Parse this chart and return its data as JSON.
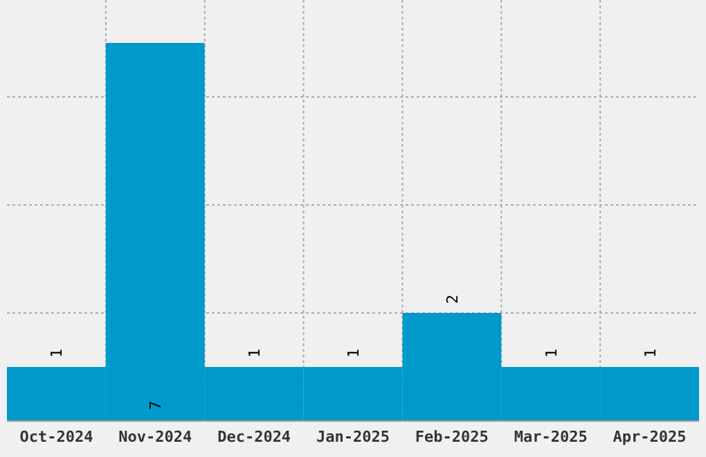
{
  "chart_data": {
    "type": "bar",
    "categories": [
      "Oct-2024",
      "Nov-2024",
      "Dec-2024",
      "Jan-2025",
      "Feb-2025",
      "Mar-2025",
      "Apr-2025"
    ],
    "values": [
      1,
      7,
      1,
      1,
      2,
      1,
      1
    ],
    "color": "#0099cc",
    "yticks": [
      {
        "value": 2,
        "label": null
      },
      {
        "value": 4,
        "label": null
      },
      {
        "value": 6,
        "label": null
      }
    ],
    "tick_labels": "x",
    "grid": true,
    "data_labels": true
  }
}
